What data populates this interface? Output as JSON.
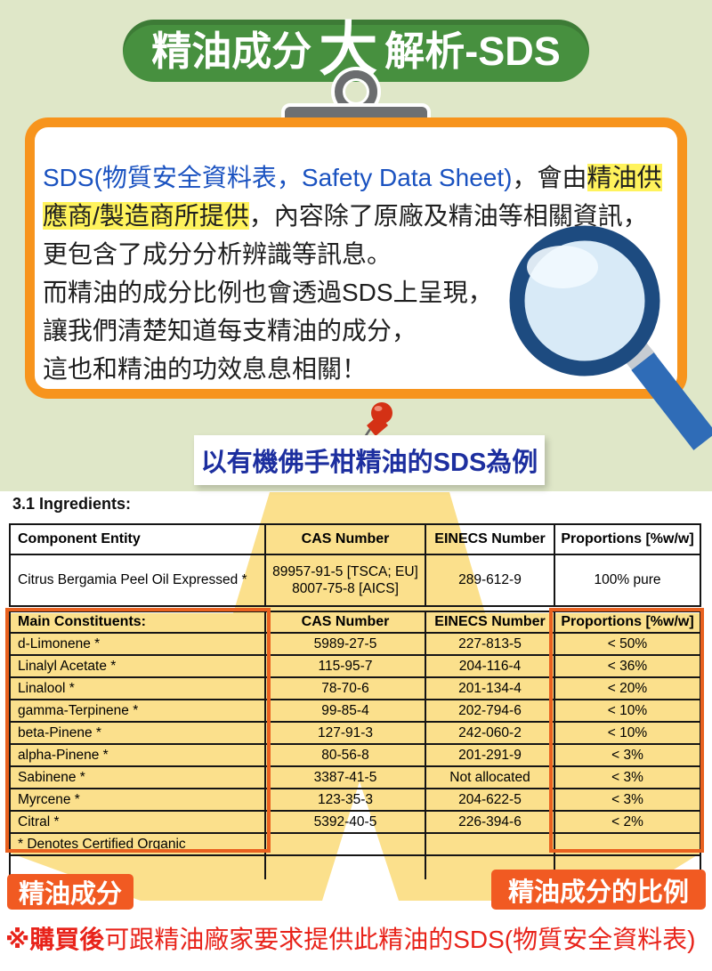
{
  "colors": {
    "background_top": "#dfe7c8",
    "title_green": "#47903f",
    "card_border_orange": "#f7941d",
    "annotation_orange": "#e9611f",
    "tag_orange": "#f15a22",
    "beam_yellow": "#fbe08c",
    "text_highlight_yellow": "#fff35c",
    "blue_text": "#1a52c0",
    "caption_blue": "#1d2f9f",
    "note_red": "#e8231a",
    "magnifier_rim": "#1d4b80",
    "magnifier_handle": "#2f6cb7",
    "magnifier_lens": "#d8eaf7"
  },
  "title": {
    "left": "精油成分",
    "big": "大",
    "right": "解析-SDS"
  },
  "card": {
    "lines": [
      {
        "segments": [
          {
            "text": "SDS(物質安全資料表，Safety Data Sheet)",
            "style": "blue"
          },
          {
            "text": "，會由",
            "style": "plain"
          },
          {
            "text": "精油供",
            "style": "highlight"
          }
        ]
      },
      {
        "segments": [
          {
            "text": "應商/製造商所提供",
            "style": "highlight"
          },
          {
            "text": "，內容除了原廠及精油等相關資訊，",
            "style": "plain"
          }
        ]
      },
      {
        "segments": [
          {
            "text": "更包含了成分分析辨識等訊息。",
            "style": "plain"
          }
        ]
      },
      {
        "segments": [
          {
            "text": "而精油的成分比例也會透過SDS上呈現，",
            "style": "plain"
          }
        ]
      },
      {
        "segments": [
          {
            "text": "讓我們清楚知道每支精油的成分，",
            "style": "plain"
          }
        ]
      },
      {
        "segments": [
          {
            "text": "這也和精油的功效息息相關！",
            "style": "plain"
          }
        ]
      }
    ]
  },
  "example_caption": "以有機佛手柑精油的SDS為例",
  "ingredients_heading": "3.1 Ingredients:",
  "ingredients_table": {
    "headers": [
      "Component Entity",
      "CAS Number",
      "EINECS Number",
      "Proportions [%w/w]"
    ],
    "rows": [
      [
        "Citrus Bergamia Peel Oil Expressed *",
        "89957-91-5 [TSCA; EU]\n8007-75-8 [AICS]",
        "289-612-9",
        "100% pure"
      ]
    ]
  },
  "constituents_table": {
    "headers": [
      "Main Constituents:",
      "CAS Number",
      "EINECS Number",
      "Proportions [%w/w]"
    ],
    "rows": [
      [
        "d-Limonene *",
        "5989-27-5",
        "227-813-5",
        "< 50%"
      ],
      [
        "Linalyl Acetate *",
        "115-95-7",
        "204-116-4",
        "< 36%"
      ],
      [
        "Linalool *",
        "78-70-6",
        "201-134-4",
        "< 20%"
      ],
      [
        "gamma-Terpinene *",
        "99-85-4",
        "202-794-6",
        "< 10%"
      ],
      [
        "beta-Pinene *",
        "127-91-3",
        "242-060-2",
        "< 10%"
      ],
      [
        "alpha-Pinene *",
        "80-56-8",
        "201-291-9",
        "< 3%"
      ],
      [
        "Sabinene *",
        "3387-41-5",
        "Not allocated",
        "< 3%"
      ],
      [
        "Myrcene *",
        "123-35-3",
        "204-622-5",
        "< 3%"
      ],
      [
        "Citral *",
        "5392-40-5",
        "226-394-6",
        "< 2%"
      ],
      [
        "* Denotes Certified Organic",
        "",
        "",
        ""
      ],
      [
        "",
        "",
        "",
        ""
      ]
    ]
  },
  "tags": {
    "left": "精油成分",
    "right": "精油成分的比例"
  },
  "purchase_note": {
    "prefix": "※購買後",
    "rest": "可跟精油廠家要求提供此精油的SDS(物質安全資料表)"
  }
}
